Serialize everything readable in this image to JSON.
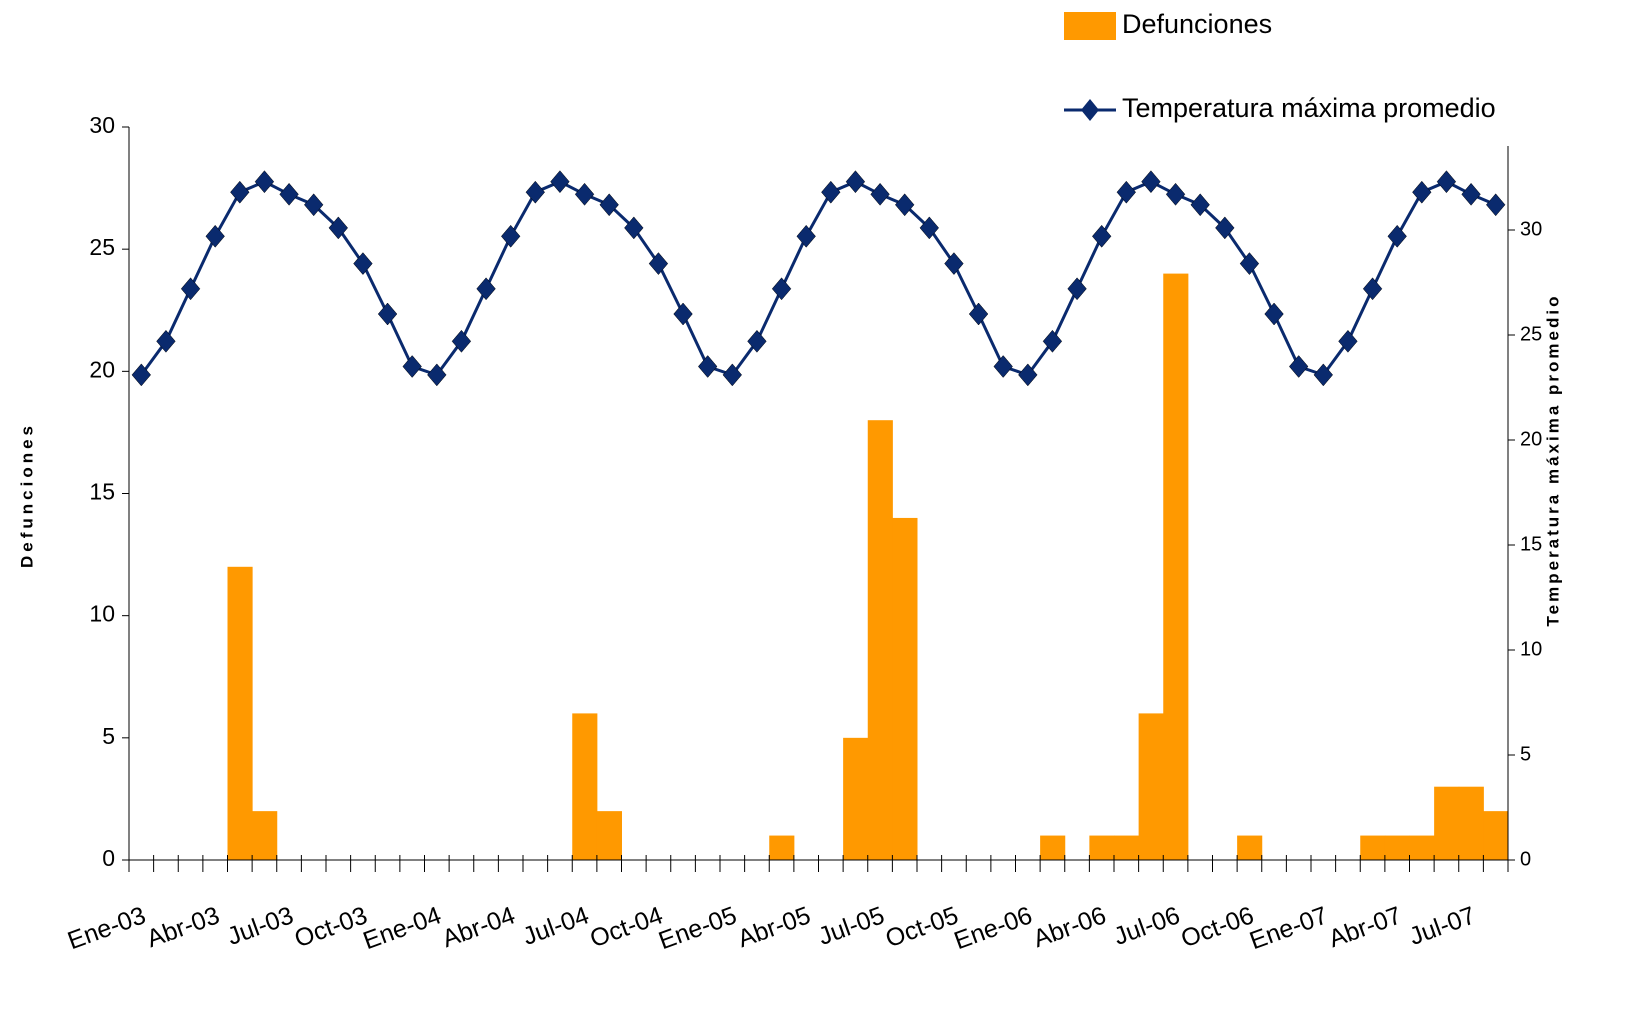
{
  "chart_data": {
    "type": "bar-line",
    "y_label": "Defunciones",
    "y2_label": "Temperatura máxima promedio",
    "categories": [
      "Ene-03",
      null,
      null,
      "Abr-03",
      null,
      null,
      "Jul-03",
      null,
      null,
      "Oct-03",
      null,
      null,
      "Ene-04",
      null,
      null,
      "Abr-04",
      null,
      null,
      "Jul-04",
      null,
      null,
      "Oct-04",
      null,
      null,
      "Ene-05",
      null,
      null,
      "Abr-05",
      null,
      null,
      "Jul-05",
      null,
      null,
      "Oct-05",
      null,
      null,
      "Ene-06",
      null,
      null,
      "Abr-06",
      null,
      null,
      "Jul-06",
      null,
      null,
      "Oct-06",
      null,
      null,
      "Ene-07",
      null,
      null,
      "Abr-07",
      null,
      null,
      "Jul-07",
      null
    ],
    "series": [
      {
        "name": "Defunciones",
        "type": "bar",
        "color": "#ff9900",
        "values": [
          0,
          0,
          0,
          0,
          12,
          2,
          0,
          0,
          0,
          0,
          0,
          0,
          0,
          0,
          0,
          0,
          0,
          0,
          6,
          2,
          0,
          0,
          0,
          0,
          0,
          0,
          1,
          0,
          0,
          5,
          18,
          14,
          0,
          0,
          0,
          0,
          0,
          1,
          0,
          1,
          1,
          6,
          24,
          0,
          0,
          1,
          0,
          0,
          0,
          0,
          1,
          1,
          1,
          3,
          3,
          2
        ]
      },
      {
        "name": "Temperatura máxima promedio",
        "type": "line",
        "axis": "y2",
        "color": "#0a2a6e",
        "values": [
          23.1,
          24.7,
          27.2,
          29.7,
          31.8,
          32.3,
          31.7,
          31.2,
          30.1,
          28.4,
          26.0,
          23.5,
          23.1,
          24.7,
          27.2,
          29.7,
          31.8,
          32.3,
          31.7,
          31.2,
          30.1,
          28.4,
          26.0,
          23.5,
          23.1,
          24.7,
          27.2,
          29.7,
          31.8,
          32.3,
          31.7,
          31.2,
          30.1,
          28.4,
          26.0,
          23.5,
          23.1,
          24.7,
          27.2,
          29.7,
          31.8,
          32.3,
          31.7,
          31.2,
          30.1,
          28.4,
          26.0,
          23.5,
          23.1,
          24.7,
          27.2,
          29.7,
          31.8,
          32.3,
          31.7,
          31.2
        ]
      }
    ],
    "ylim": [
      0,
      30
    ],
    "yticks": [
      0,
      5,
      10,
      15,
      20,
      25,
      30
    ],
    "y2lim": [
      0,
      34
    ],
    "y2ticks": [
      0,
      5,
      10,
      15,
      20,
      25,
      30
    ]
  }
}
